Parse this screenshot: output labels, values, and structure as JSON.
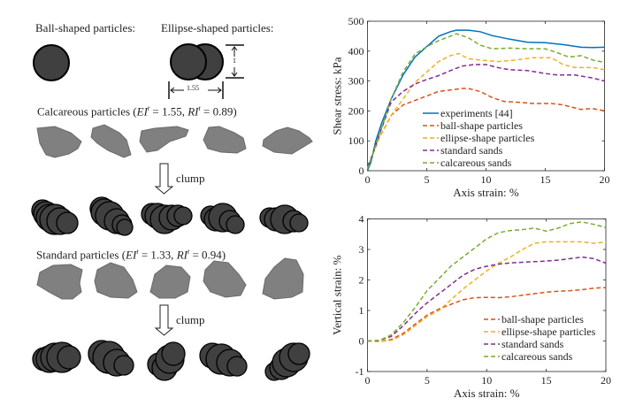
{
  "figure": {
    "ball_label": "Ball-shaped particles:",
    "ellipse_label": "Ellipse-shaped particles:",
    "ellipse_width_label": "1.55",
    "ellipse_height_label": "1",
    "calcareous": {
      "prefix": "Calcareous particles (",
      "ei": "EI",
      "ei_sup": "t",
      "ei_val": " = 1.55, ",
      "ri": "RI",
      "ri_sup": "t",
      "ri_val": " = 0.89)"
    },
    "standard": {
      "prefix": "Standard particles (",
      "ei": "EI",
      "ei_sup": "t",
      "ei_val": " = 1.33, ",
      "ri": "RI",
      "ri_sup": "t",
      "ri_val": " = 0.94)"
    },
    "clump_label": "clump",
    "colors": {
      "particle_dark": "#404040",
      "particle_grey": "#808080"
    }
  },
  "chart_data": [
    {
      "type": "line",
      "title": "",
      "xlabel": "Axis strain: %",
      "ylabel": "Shear stress: kPa",
      "xlim": [
        0,
        20
      ],
      "ylim": [
        0,
        500
      ],
      "xticks": [
        0,
        5,
        10,
        15,
        20
      ],
      "yticks": [
        0,
        100,
        200,
        300,
        400,
        500
      ],
      "legend_position": "bottom-center",
      "series": [
        {
          "name": "experiments [44]",
          "color": "#0072BD",
          "style": "solid",
          "x": [
            0,
            0.3,
            0.7,
            1.2,
            2,
            3,
            4,
            5,
            6,
            7,
            7.5,
            8.5,
            9.5,
            10.5,
            12,
            13.5,
            15,
            16.5,
            18,
            19,
            20
          ],
          "y": [
            0,
            30,
            100,
            160,
            240,
            320,
            380,
            415,
            450,
            465,
            470,
            470,
            465,
            452,
            440,
            430,
            428,
            422,
            413,
            412,
            413
          ]
        },
        {
          "name": "ball-shape particles",
          "color": "#D95319",
          "style": "dashed",
          "x": [
            0,
            0.3,
            1,
            2,
            3,
            4,
            5,
            6,
            7,
            8,
            8.5,
            9.5,
            10.5,
            11.5,
            13,
            14,
            15.5,
            16.5,
            18,
            19,
            20
          ],
          "y": [
            10,
            40,
            110,
            185,
            220,
            235,
            250,
            265,
            270,
            275,
            275,
            265,
            245,
            232,
            228,
            225,
            225,
            220,
            205,
            208,
            200
          ]
        },
        {
          "name": "ellipse-shape particles",
          "color": "#EDB120",
          "style": "dashed",
          "x": [
            0,
            0.3,
            1,
            2,
            3,
            4,
            5,
            6,
            7,
            7.7,
            8.5,
            9.5,
            11,
            12.5,
            14,
            15.5,
            16.5,
            17.5,
            19,
            20
          ],
          "y": [
            10,
            40,
            110,
            185,
            240,
            295,
            330,
            365,
            385,
            392,
            375,
            370,
            365,
            370,
            378,
            378,
            355,
            345,
            345,
            338
          ]
        },
        {
          "name": "standard sands",
          "color": "#7E2F8E",
          "style": "dashed",
          "x": [
            0,
            0.3,
            1,
            2,
            3,
            4,
            5,
            6,
            7,
            8,
            9,
            10,
            11,
            12,
            13.5,
            15,
            16,
            17.5,
            19,
            20
          ],
          "y": [
            15,
            40,
            120,
            230,
            265,
            290,
            305,
            318,
            335,
            350,
            355,
            355,
            345,
            338,
            335,
            325,
            320,
            320,
            310,
            300
          ]
        },
        {
          "name": "calcareous sands",
          "color": "#77AC30",
          "style": "dashed",
          "x": [
            0,
            0.3,
            1,
            2,
            3,
            4,
            5,
            6,
            7,
            7.5,
            8.5,
            9.5,
            10.5,
            12,
            13.5,
            15,
            16,
            17,
            18,
            19,
            20
          ],
          "y": [
            5,
            40,
            120,
            240,
            330,
            390,
            415,
            435,
            450,
            458,
            445,
            420,
            408,
            410,
            408,
            408,
            395,
            380,
            385,
            370,
            362
          ]
        }
      ]
    },
    {
      "type": "line",
      "title": "",
      "xlabel": "Axis strain: %",
      "ylabel": "Vertical strain: %",
      "xlim": [
        0,
        20
      ],
      "ylim": [
        -1,
        4
      ],
      "xticks": [
        0,
        5,
        10,
        15,
        20
      ],
      "yticks": [
        -1,
        0,
        1,
        2,
        3,
        4
      ],
      "legend_position": "bottom-right",
      "series": [
        {
          "name": "ball-shape particles",
          "color": "#D95319",
          "style": "dashed",
          "x": [
            0,
            1,
            2,
            3,
            4,
            5,
            6,
            7,
            8,
            9,
            10,
            11,
            12,
            13,
            14,
            15,
            16,
            17,
            18,
            19,
            20
          ],
          "y": [
            0,
            -0.02,
            0.05,
            0.25,
            0.55,
            0.85,
            1.05,
            1.2,
            1.35,
            1.42,
            1.43,
            1.42,
            1.45,
            1.5,
            1.55,
            1.6,
            1.63,
            1.65,
            1.68,
            1.73,
            1.75
          ]
        },
        {
          "name": "ellipse-shape particles",
          "color": "#EDB120",
          "style": "dashed",
          "x": [
            0,
            1,
            2,
            3,
            4,
            5,
            6,
            7,
            8,
            9,
            10,
            11,
            12,
            13,
            14,
            15,
            16,
            17,
            18,
            19,
            20
          ],
          "y": [
            0,
            -0.02,
            0.02,
            0.2,
            0.5,
            0.8,
            1.0,
            1.35,
            1.7,
            2.0,
            2.3,
            2.55,
            2.75,
            3.0,
            3.2,
            3.25,
            3.25,
            3.25,
            3.25,
            3.2,
            3.25
          ]
        },
        {
          "name": "standard sands",
          "color": "#7E2F8E",
          "style": "dashed",
          "x": [
            0,
            1,
            2,
            3,
            4,
            5,
            6,
            7,
            8,
            9,
            10,
            11,
            12,
            13,
            14,
            15,
            16,
            17,
            18,
            19,
            20
          ],
          "y": [
            0,
            0.02,
            0.15,
            0.5,
            0.9,
            1.25,
            1.55,
            1.85,
            2.15,
            2.35,
            2.45,
            2.52,
            2.56,
            2.58,
            2.6,
            2.62,
            2.65,
            2.7,
            2.75,
            2.7,
            2.55
          ]
        },
        {
          "name": "calcareous sands",
          "color": "#77AC30",
          "style": "dashed",
          "x": [
            0,
            1,
            2,
            3,
            4,
            5,
            6,
            7,
            8,
            9,
            10,
            11,
            12,
            13,
            14,
            15,
            16,
            17,
            18,
            19,
            20
          ],
          "y": [
            0,
            0.02,
            0.2,
            0.6,
            1.1,
            1.65,
            2.05,
            2.45,
            2.75,
            3.05,
            3.35,
            3.55,
            3.62,
            3.65,
            3.7,
            3.6,
            3.7,
            3.85,
            3.9,
            3.82,
            3.72
          ]
        }
      ]
    }
  ]
}
